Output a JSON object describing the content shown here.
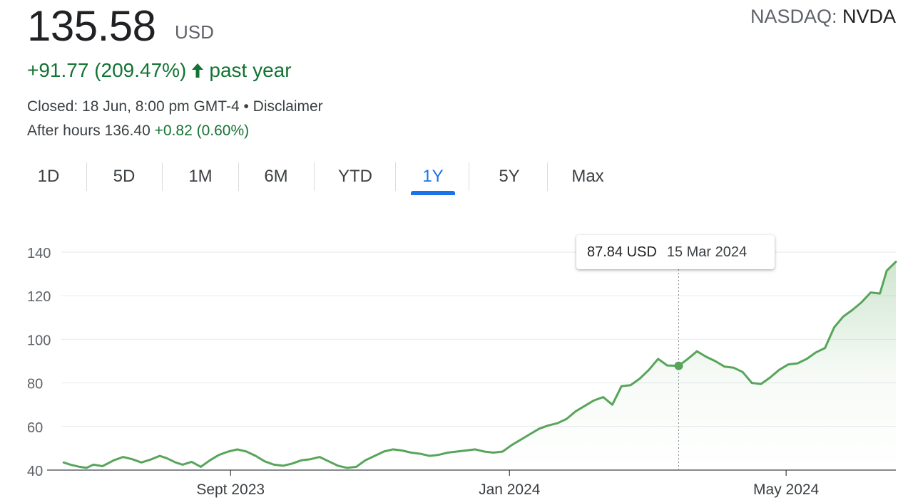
{
  "quote": {
    "price": "135.58",
    "currency": "USD",
    "exchange": "NASDAQ:",
    "symbol": "NVDA",
    "change": "+91.77 (209.47%)",
    "period": "past year",
    "closed": "Closed: 18 Jun, 8:00 pm GMT-4 • Disclaimer",
    "after_hours_label": "After hours 136.40",
    "after_hours_change": "+0.82 (0.60%)",
    "positive_color": "#137333",
    "accent_color": "#1a73e8"
  },
  "tabs": [
    {
      "label": "1D"
    },
    {
      "label": "5D"
    },
    {
      "label": "1M"
    },
    {
      "label": "6M"
    },
    {
      "label": "YTD"
    },
    {
      "label": "1Y",
      "active": true
    },
    {
      "label": "5Y"
    },
    {
      "label": "Max"
    }
  ],
  "tooltip": {
    "price": "87.84 USD",
    "date": "15 Mar 2024"
  },
  "chart_data": {
    "type": "area",
    "line_color": "#57a55a",
    "ylim": [
      40,
      140
    ],
    "yticks": [
      40,
      60,
      80,
      100,
      120,
      140
    ],
    "ytick_labels": [
      "40",
      "60",
      "80",
      "100",
      "120",
      "140"
    ],
    "grid": true,
    "xlim": [
      "2023-06-19",
      "2024-06-18"
    ],
    "xticks": [
      {
        "date": "2023-09-01",
        "label": "Sept 2023"
      },
      {
        "date": "2024-01-01",
        "label": "Jan 2024"
      },
      {
        "date": "2024-05-01",
        "label": "May 2024"
      }
    ],
    "highlight": {
      "date": "2024-03-15",
      "value": 87.84
    },
    "series": [
      {
        "x": [
          "2023-06-20",
          "2023-06-23",
          "2023-06-27",
          "2023-06-30",
          "2023-07-03",
          "2023-07-07",
          "2023-07-12",
          "2023-07-16",
          "2023-07-20",
          "2023-07-24",
          "2023-07-28",
          "2023-08-01",
          "2023-08-04",
          "2023-08-08",
          "2023-08-11",
          "2023-08-15",
          "2023-08-19",
          "2023-08-23",
          "2023-08-27",
          "2023-08-31",
          "2023-09-04",
          "2023-09-08",
          "2023-09-12",
          "2023-09-16",
          "2023-09-20",
          "2023-09-24",
          "2023-09-28",
          "2023-10-02",
          "2023-10-06",
          "2023-10-10",
          "2023-10-14",
          "2023-10-18",
          "2023-10-22",
          "2023-10-26",
          "2023-10-30",
          "2023-11-03",
          "2023-11-07",
          "2023-11-11",
          "2023-11-15",
          "2023-11-19",
          "2023-11-23",
          "2023-11-27",
          "2023-12-01",
          "2023-12-05",
          "2023-12-09",
          "2023-12-13",
          "2023-12-17",
          "2023-12-21",
          "2023-12-25",
          "2023-12-29",
          "2024-01-02",
          "2024-01-06",
          "2024-01-10",
          "2024-01-14",
          "2024-01-18",
          "2024-01-22",
          "2024-01-26",
          "2024-01-30",
          "2024-02-03",
          "2024-02-07",
          "2024-02-11",
          "2024-02-15",
          "2024-02-19",
          "2024-02-23",
          "2024-02-27",
          "2024-03-02",
          "2024-03-06",
          "2024-03-10",
          "2024-03-15",
          "2024-03-19",
          "2024-03-23",
          "2024-03-27",
          "2024-03-31",
          "2024-04-04",
          "2024-04-08",
          "2024-04-12",
          "2024-04-16",
          "2024-04-20",
          "2024-04-24",
          "2024-04-28",
          "2024-05-02",
          "2024-05-06",
          "2024-05-10",
          "2024-05-14",
          "2024-05-18",
          "2024-05-22",
          "2024-05-26",
          "2024-05-30",
          "2024-06-03",
          "2024-06-07",
          "2024-06-11",
          "2024-06-14",
          "2024-06-18"
        ],
        "values": [
          43.5,
          42.5,
          41.5,
          41.0,
          42.5,
          41.8,
          44.5,
          46.0,
          45.0,
          43.5,
          44.8,
          46.5,
          45.5,
          43.5,
          42.5,
          43.8,
          41.5,
          44.5,
          47.0,
          48.5,
          49.5,
          48.5,
          46.5,
          44.0,
          42.5,
          42.0,
          43.0,
          44.5,
          45.0,
          46.0,
          44.0,
          42.0,
          41.0,
          41.5,
          44.5,
          46.5,
          48.5,
          49.5,
          49.0,
          48.0,
          47.5,
          46.5,
          47.0,
          48.0,
          48.5,
          49.0,
          49.5,
          48.5,
          48.0,
          48.5,
          51.5,
          54.0,
          56.5,
          59.0,
          60.5,
          61.5,
          63.5,
          67.0,
          69.5,
          72.0,
          73.5,
          70.0,
          78.5,
          79.0,
          82.0,
          86.0,
          91.0,
          88.0,
          87.84,
          91.0,
          94.5,
          92.0,
          90.0,
          87.5,
          87.0,
          85.0,
          80.0,
          79.5,
          82.5,
          86.0,
          88.5,
          89.0,
          91.0,
          94.0,
          96.0,
          105.5,
          110.5,
          113.5,
          117.0,
          121.5,
          121.0,
          131.5,
          135.58
        ]
      }
    ]
  }
}
